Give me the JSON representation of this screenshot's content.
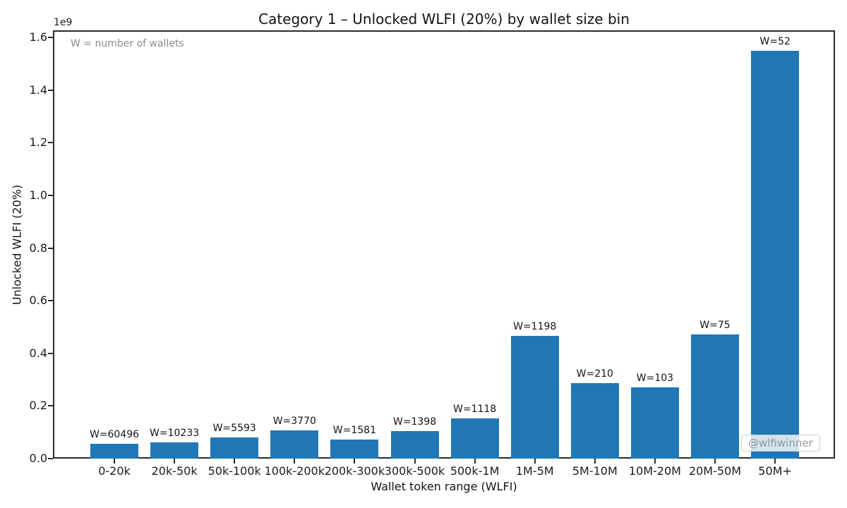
{
  "chart_data": {
    "type": "bar",
    "title": "Category 1 – Unlocked WLFI (20%) by wallet size bin",
    "xlabel": "Wallet token range (WLFI)",
    "ylabel": "Unlocked WLFI (20%)",
    "y_offset_label": "1e9",
    "annotation": "W = number of wallets",
    "watermark": "@wlfiwinner",
    "grid": false,
    "legend": null,
    "bar_color": "#2077b4",
    "categories": [
      "0-20k",
      "20k-50k",
      "50k-100k",
      "100k-200k",
      "200k-300k",
      "300k-500k",
      "500k-1M",
      "1M-5M",
      "5M-10M",
      "10M-20M",
      "20M-50M",
      "50M+"
    ],
    "values": [
      56000000,
      62000000,
      80000000,
      106000000,
      72000000,
      105000000,
      152000000,
      467000000,
      286000000,
      270000000,
      473000000,
      1548000000
    ],
    "wallets": [
      60496,
      10233,
      5593,
      3770,
      1581,
      1398,
      1118,
      1198,
      210,
      103,
      75,
      52
    ],
    "bar_labels": [
      "W=60496",
      "W=10233",
      "W=5593",
      "W=3770",
      "W=1581",
      "W=1398",
      "W=1118",
      "W=1198",
      "W=210",
      "W=103",
      "W=75",
      "W=52"
    ],
    "ylim": [
      0,
      1627000000
    ],
    "ytick_values": [
      0,
      200000000,
      400000000,
      600000000,
      800000000,
      1000000000,
      1200000000,
      1400000000,
      1600000000
    ],
    "ytick_labels": [
      "0.0",
      "0.2",
      "0.4",
      "0.6",
      "0.8",
      "1.0",
      "1.2",
      "1.4",
      "1.6"
    ]
  }
}
